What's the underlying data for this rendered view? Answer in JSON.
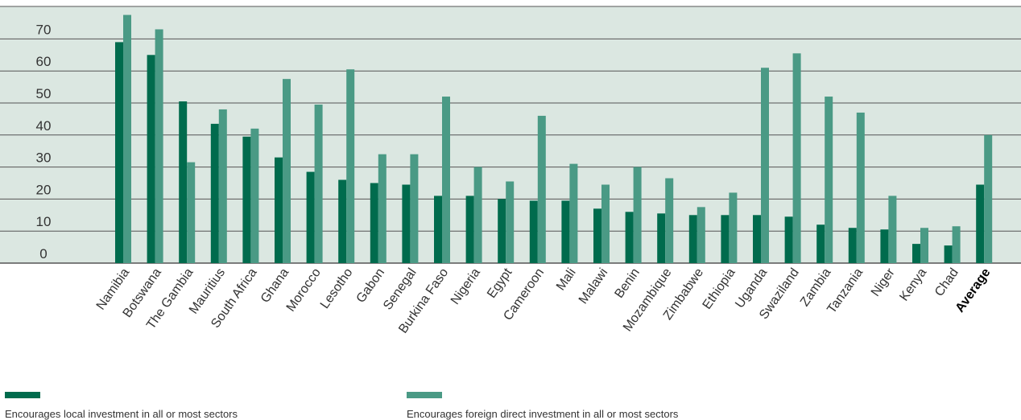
{
  "chart_data": {
    "type": "bar",
    "categories": [
      "Namibia",
      "Botswana",
      "The Gambia",
      "Mauritius",
      "South Africa",
      "Ghana",
      "Morocco",
      "Lesotho",
      "Gabon",
      "Senegal",
      "Burkina Faso",
      "Nigeria",
      "Egypt",
      "Cameroon",
      "Mali",
      "Malawi",
      "Benin",
      "Mozambique",
      "Zimbabwe",
      "Ethiopia",
      "Uganda",
      "Swaziland",
      "Zambia",
      "Tanzania",
      "Niger",
      "Kenya",
      "Chad",
      "Average"
    ],
    "emphasized_category": "Average",
    "series": [
      {
        "name": "Encourages local investment in all or most sectors",
        "color": "#006b4d",
        "values": [
          69,
          65,
          50.5,
          43.5,
          39.5,
          33,
          28.5,
          26,
          25,
          24.5,
          21,
          21,
          20,
          19.5,
          19.5,
          17,
          16,
          15.5,
          15,
          15,
          15,
          14.5,
          12,
          11,
          10.5,
          6,
          5.5,
          24.5
        ]
      },
      {
        "name": "Encourages foreign direct investment in all or most sectors",
        "color": "#4a9a85",
        "values": [
          77.5,
          73,
          31.5,
          48,
          42,
          57.5,
          49.5,
          60.5,
          34,
          34,
          52,
          30,
          25.5,
          46,
          31,
          24.5,
          30,
          26.5,
          17.5,
          22,
          61,
          65.5,
          52,
          47,
          21,
          11,
          11.5,
          40
        ]
      }
    ],
    "yticks": [
      0,
      10,
      20,
      30,
      40,
      50,
      60,
      70
    ],
    "ylim": [
      0,
      80
    ],
    "grid": true,
    "legend_position": "bottom",
    "colors": {
      "plot_background": "#dbe7e1",
      "gridline": "#555555",
      "axis_line": "#555555"
    }
  }
}
